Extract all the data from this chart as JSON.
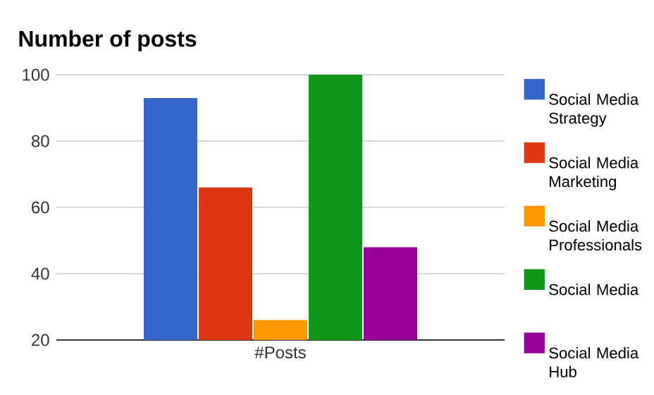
{
  "chart_data": {
    "type": "bar",
    "title": "Number of posts",
    "categories": [
      "#Posts"
    ],
    "series": [
      {
        "name": "Social Media Strategy",
        "color": "#3366cc",
        "values": [
          93
        ]
      },
      {
        "name": "Social Media Marketing",
        "color": "#dc3912",
        "values": [
          66
        ]
      },
      {
        "name": "Social Media Professionals",
        "color": "#ff9900",
        "values": [
          26
        ]
      },
      {
        "name": "Social Media",
        "color": "#109618",
        "values": [
          100
        ]
      },
      {
        "name": "Social Media Hub",
        "color": "#990099",
        "values": [
          48
        ]
      }
    ],
    "ylim": [
      20,
      100
    ],
    "yticks": [
      20,
      40,
      60,
      80,
      100
    ],
    "grid": "y",
    "legend": "right"
  }
}
